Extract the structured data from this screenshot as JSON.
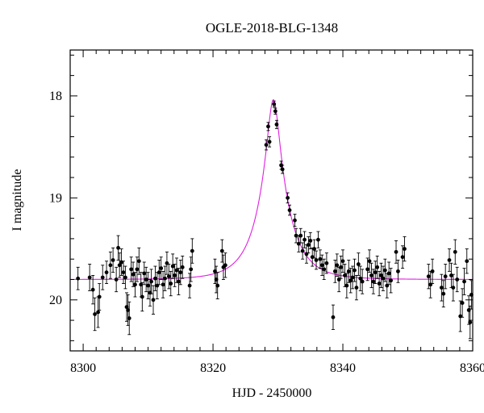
{
  "chart_data": {
    "type": "scatter",
    "title": "OGLE-2018-BLG-1348",
    "xlabel": "HJD - 2450000",
    "ylabel": "I magnitude",
    "xlim": [
      8298,
      8360
    ],
    "ylim": [
      20.5,
      17.55
    ],
    "y_inverted": true,
    "xticks": [
      8300,
      8320,
      8340,
      8360
    ],
    "yticks": [
      18,
      19,
      20
    ],
    "grid": false,
    "marker_color": "#000000",
    "model_color": "#e020e0",
    "model": {
      "type": "Paczynski",
      "t0": 8329.3,
      "u0": 0.2,
      "tE": 4.4,
      "baseline_mag": 19.8
    },
    "series": [
      {
        "points": [
          [
            8299.2,
            19.79,
            0.11
          ],
          [
            8301.0,
            19.78,
            0.13
          ],
          [
            8301.5,
            19.9,
            0.14
          ],
          [
            8301.8,
            20.14,
            0.16
          ],
          [
            8302.3,
            20.12,
            0.15
          ],
          [
            8302.5,
            19.97,
            0.13
          ],
          [
            8303.0,
            19.78,
            0.12
          ],
          [
            8303.6,
            19.73,
            0.11
          ],
          [
            8304.2,
            19.66,
            0.13
          ],
          [
            8304.6,
            19.61,
            0.12
          ],
          [
            8305.1,
            19.8,
            0.12
          ],
          [
            8305.4,
            19.49,
            0.12
          ],
          [
            8305.6,
            19.66,
            0.12
          ],
          [
            8305.9,
            19.63,
            0.13
          ],
          [
            8306.2,
            19.73,
            0.11
          ],
          [
            8306.5,
            19.78,
            0.11
          ],
          [
            8306.7,
            20.07,
            0.14
          ],
          [
            8306.9,
            20.1,
            0.15
          ],
          [
            8307.1,
            20.18,
            0.16
          ],
          [
            8307.4,
            19.7,
            0.12
          ],
          [
            8307.7,
            19.75,
            0.12
          ],
          [
            8308.0,
            19.85,
            0.12
          ],
          [
            8308.3,
            19.7,
            0.12
          ],
          [
            8308.6,
            19.62,
            0.13
          ],
          [
            8308.9,
            19.85,
            0.12
          ],
          [
            8309.1,
            19.97,
            0.14
          ],
          [
            8309.4,
            19.74,
            0.11
          ],
          [
            8309.7,
            19.8,
            0.12
          ],
          [
            8310.0,
            19.86,
            0.13
          ],
          [
            8310.3,
            19.93,
            0.13
          ],
          [
            8310.5,
            19.82,
            0.12
          ],
          [
            8310.8,
            20.0,
            0.14
          ],
          [
            8311.1,
            19.79,
            0.12
          ],
          [
            8311.4,
            19.86,
            0.13
          ],
          [
            8311.7,
            19.73,
            0.12
          ],
          [
            8312.0,
            19.69,
            0.11
          ],
          [
            8312.3,
            19.85,
            0.13
          ],
          [
            8312.6,
            19.79,
            0.12
          ],
          [
            8312.9,
            19.64,
            0.11
          ],
          [
            8313.2,
            19.77,
            0.12
          ],
          [
            8313.5,
            19.84,
            0.12
          ],
          [
            8313.8,
            19.67,
            0.12
          ],
          [
            8314.1,
            19.76,
            0.11
          ],
          [
            8314.4,
            19.71,
            0.12
          ],
          [
            8314.7,
            19.82,
            0.13
          ],
          [
            8315.0,
            19.73,
            0.12
          ],
          [
            8315.3,
            19.68,
            0.11
          ],
          [
            8316.4,
            19.86,
            0.12
          ],
          [
            8316.6,
            19.7,
            0.12
          ],
          [
            8316.8,
            19.52,
            0.12
          ],
          [
            8320.3,
            19.72,
            0.12
          ],
          [
            8320.5,
            19.8,
            0.13
          ],
          [
            8320.7,
            19.86,
            0.13
          ],
          [
            8321.4,
            19.52,
            0.11
          ],
          [
            8321.6,
            19.68,
            0.12
          ],
          [
            8321.9,
            19.66,
            0.12
          ],
          [
            8328.2,
            18.48,
            0.05
          ],
          [
            8328.5,
            18.3,
            0.04
          ],
          [
            8328.7,
            18.45,
            0.05
          ],
          [
            8329.4,
            18.08,
            0.03
          ],
          [
            8329.6,
            18.15,
            0.03
          ],
          [
            8329.8,
            18.28,
            0.04
          ],
          [
            8330.5,
            18.68,
            0.04
          ],
          [
            8330.7,
            18.72,
            0.04
          ],
          [
            8331.5,
            19.0,
            0.05
          ],
          [
            8331.8,
            19.12,
            0.05
          ],
          [
            8332.6,
            19.22,
            0.06
          ],
          [
            8332.8,
            19.37,
            0.07
          ],
          [
            8333.2,
            19.45,
            0.08
          ],
          [
            8333.5,
            19.37,
            0.07
          ],
          [
            8333.8,
            19.52,
            0.08
          ],
          [
            8334.1,
            19.41,
            0.08
          ],
          [
            8334.4,
            19.55,
            0.09
          ],
          [
            8334.7,
            19.46,
            0.08
          ],
          [
            8335.0,
            19.42,
            0.08
          ],
          [
            8335.3,
            19.58,
            0.09
          ],
          [
            8335.6,
            19.5,
            0.09
          ],
          [
            8335.9,
            19.61,
            0.09
          ],
          [
            8336.2,
            19.41,
            0.08
          ],
          [
            8336.5,
            19.6,
            0.09
          ],
          [
            8336.8,
            19.66,
            0.1
          ],
          [
            8337.1,
            19.7,
            0.1
          ],
          [
            8337.5,
            19.64,
            0.1
          ],
          [
            8338.5,
            20.17,
            0.12
          ],
          [
            8338.8,
            19.72,
            0.11
          ],
          [
            8339.1,
            19.66,
            0.11
          ],
          [
            8339.4,
            19.8,
            0.12
          ],
          [
            8339.7,
            19.68,
            0.11
          ],
          [
            8340.0,
            19.62,
            0.11
          ],
          [
            8340.3,
            19.76,
            0.11
          ],
          [
            8340.6,
            19.86,
            0.12
          ],
          [
            8340.9,
            19.72,
            0.11
          ],
          [
            8341.2,
            19.81,
            0.12
          ],
          [
            8341.5,
            19.78,
            0.11
          ],
          [
            8341.8,
            19.71,
            0.11
          ],
          [
            8342.1,
            19.88,
            0.12
          ],
          [
            8342.4,
            19.65,
            0.11
          ],
          [
            8342.7,
            19.79,
            0.12
          ],
          [
            8343.0,
            19.82,
            0.12
          ],
          [
            8343.8,
            19.7,
            0.11
          ],
          [
            8344.1,
            19.62,
            0.11
          ],
          [
            8344.4,
            19.76,
            0.12
          ],
          [
            8344.7,
            19.82,
            0.12
          ],
          [
            8345.0,
            19.73,
            0.11
          ],
          [
            8345.3,
            19.68,
            0.11
          ],
          [
            8345.6,
            19.84,
            0.12
          ],
          [
            8345.9,
            19.76,
            0.12
          ],
          [
            8346.2,
            19.79,
            0.12
          ],
          [
            8346.5,
            19.71,
            0.11
          ],
          [
            8346.8,
            19.86,
            0.12
          ],
          [
            8347.1,
            19.74,
            0.11
          ],
          [
            8347.4,
            19.81,
            0.12
          ],
          [
            8348.2,
            19.53,
            0.11
          ],
          [
            8348.5,
            19.72,
            0.11
          ],
          [
            8349.2,
            19.58,
            0.11
          ],
          [
            8349.5,
            19.5,
            0.12
          ],
          [
            8353.2,
            19.77,
            0.12
          ],
          [
            8353.5,
            19.85,
            0.13
          ],
          [
            8353.8,
            19.72,
            0.12
          ],
          [
            8355.2,
            19.88,
            0.13
          ],
          [
            8355.5,
            19.94,
            0.13
          ],
          [
            8355.8,
            19.77,
            0.12
          ],
          [
            8356.4,
            19.61,
            0.11
          ],
          [
            8356.7,
            19.76,
            0.12
          ],
          [
            8357.0,
            19.88,
            0.13
          ],
          [
            8357.3,
            19.53,
            0.12
          ],
          [
            8357.6,
            19.8,
            0.12
          ],
          [
            8358.1,
            20.16,
            0.15
          ],
          [
            8358.4,
            20.03,
            0.14
          ],
          [
            8358.7,
            19.82,
            0.13
          ],
          [
            8359.1,
            19.62,
            0.12
          ],
          [
            8359.4,
            20.1,
            0.14
          ],
          [
            8359.6,
            20.22,
            0.16
          ],
          [
            8359.8,
            19.95,
            0.14
          ]
        ]
      }
    ]
  }
}
